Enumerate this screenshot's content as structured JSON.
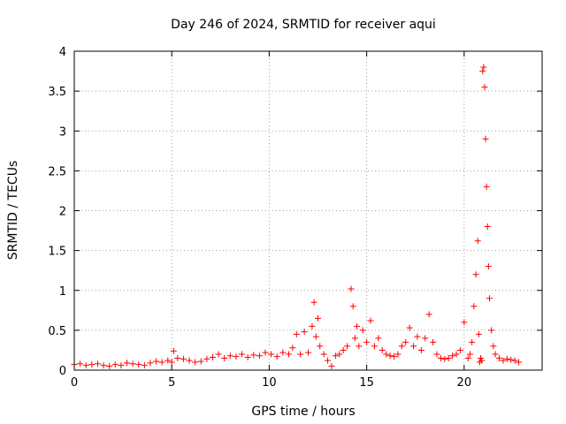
{
  "chart_data": {
    "type": "scatter",
    "title": "Day 246 of 2024, SRMTID for receiver aqui",
    "xlabel": "GPS time / hours",
    "ylabel": "SRMTID / TECUs",
    "xlim": [
      0,
      24
    ],
    "ylim": [
      0,
      4
    ],
    "x_ticks": [
      0,
      5,
      10,
      15,
      20
    ],
    "x_tick_labels": [
      "0",
      "5",
      "10",
      "15",
      "20"
    ],
    "y_ticks": [
      0,
      0.5,
      1,
      1.5,
      2,
      2.5,
      3,
      3.5,
      4
    ],
    "y_tick_labels": [
      "0",
      "0.5",
      "1",
      "1.5",
      "2",
      "2.5",
      "3",
      "3.5",
      "4"
    ],
    "grid": true,
    "marker": "plus",
    "color": "#ff0000",
    "series": [
      {
        "name": "SRMTID",
        "x": [
          0.0,
          0.3,
          0.6,
          0.9,
          1.2,
          1.5,
          1.8,
          2.1,
          2.4,
          2.7,
          3.0,
          3.3,
          3.6,
          3.9,
          4.2,
          4.5,
          4.8,
          5.0,
          5.1,
          5.3,
          5.6,
          5.9,
          6.2,
          6.5,
          6.8,
          7.1,
          7.4,
          7.7,
          8.0,
          8.3,
          8.6,
          8.9,
          9.2,
          9.5,
          9.8,
          10.1,
          10.4,
          10.7,
          11.0,
          11.2,
          11.4,
          11.6,
          11.8,
          12.0,
          12.2,
          12.3,
          12.4,
          12.5,
          12.6,
          12.8,
          13.0,
          13.2,
          13.4,
          13.6,
          13.8,
          14.0,
          14.2,
          14.3,
          14.4,
          14.5,
          14.6,
          14.8,
          15.0,
          15.2,
          15.4,
          15.6,
          15.8,
          16.0,
          16.2,
          16.4,
          16.6,
          16.8,
          17.0,
          17.2,
          17.4,
          17.6,
          17.8,
          18.0,
          18.2,
          18.4,
          18.6,
          18.8,
          19.0,
          19.2,
          19.4,
          19.6,
          19.8,
          20.0,
          20.2,
          20.3,
          20.4,
          20.5,
          20.6,
          20.7,
          20.75,
          20.8,
          20.85,
          20.9,
          20.95,
          21.0,
          21.05,
          21.1,
          21.15,
          21.2,
          21.25,
          21.3,
          21.4,
          21.5,
          21.6,
          21.8,
          22.0,
          22.2,
          22.4,
          22.6,
          22.8
        ],
        "y": [
          0.07,
          0.08,
          0.06,
          0.07,
          0.08,
          0.06,
          0.05,
          0.07,
          0.06,
          0.09,
          0.08,
          0.07,
          0.06,
          0.09,
          0.11,
          0.1,
          0.12,
          0.1,
          0.24,
          0.15,
          0.14,
          0.12,
          0.1,
          0.11,
          0.14,
          0.16,
          0.2,
          0.15,
          0.18,
          0.17,
          0.2,
          0.16,
          0.19,
          0.18,
          0.22,
          0.2,
          0.17,
          0.22,
          0.2,
          0.28,
          0.45,
          0.2,
          0.48,
          0.22,
          0.55,
          0.85,
          0.42,
          0.65,
          0.3,
          0.2,
          0.12,
          0.05,
          0.18,
          0.2,
          0.25,
          0.3,
          1.02,
          0.8,
          0.4,
          0.55,
          0.3,
          0.5,
          0.35,
          0.62,
          0.3,
          0.4,
          0.25,
          0.2,
          0.18,
          0.17,
          0.2,
          0.3,
          0.35,
          0.53,
          0.3,
          0.42,
          0.25,
          0.4,
          0.7,
          0.35,
          0.2,
          0.15,
          0.14,
          0.15,
          0.18,
          0.2,
          0.25,
          0.6,
          0.15,
          0.2,
          0.35,
          0.8,
          1.2,
          1.62,
          0.45,
          0.1,
          0.15,
          0.12,
          3.75,
          3.8,
          3.55,
          2.9,
          2.3,
          1.8,
          1.3,
          0.9,
          0.5,
          0.3,
          0.2,
          0.15,
          0.12,
          0.14,
          0.13,
          0.12,
          0.1
        ]
      }
    ]
  }
}
